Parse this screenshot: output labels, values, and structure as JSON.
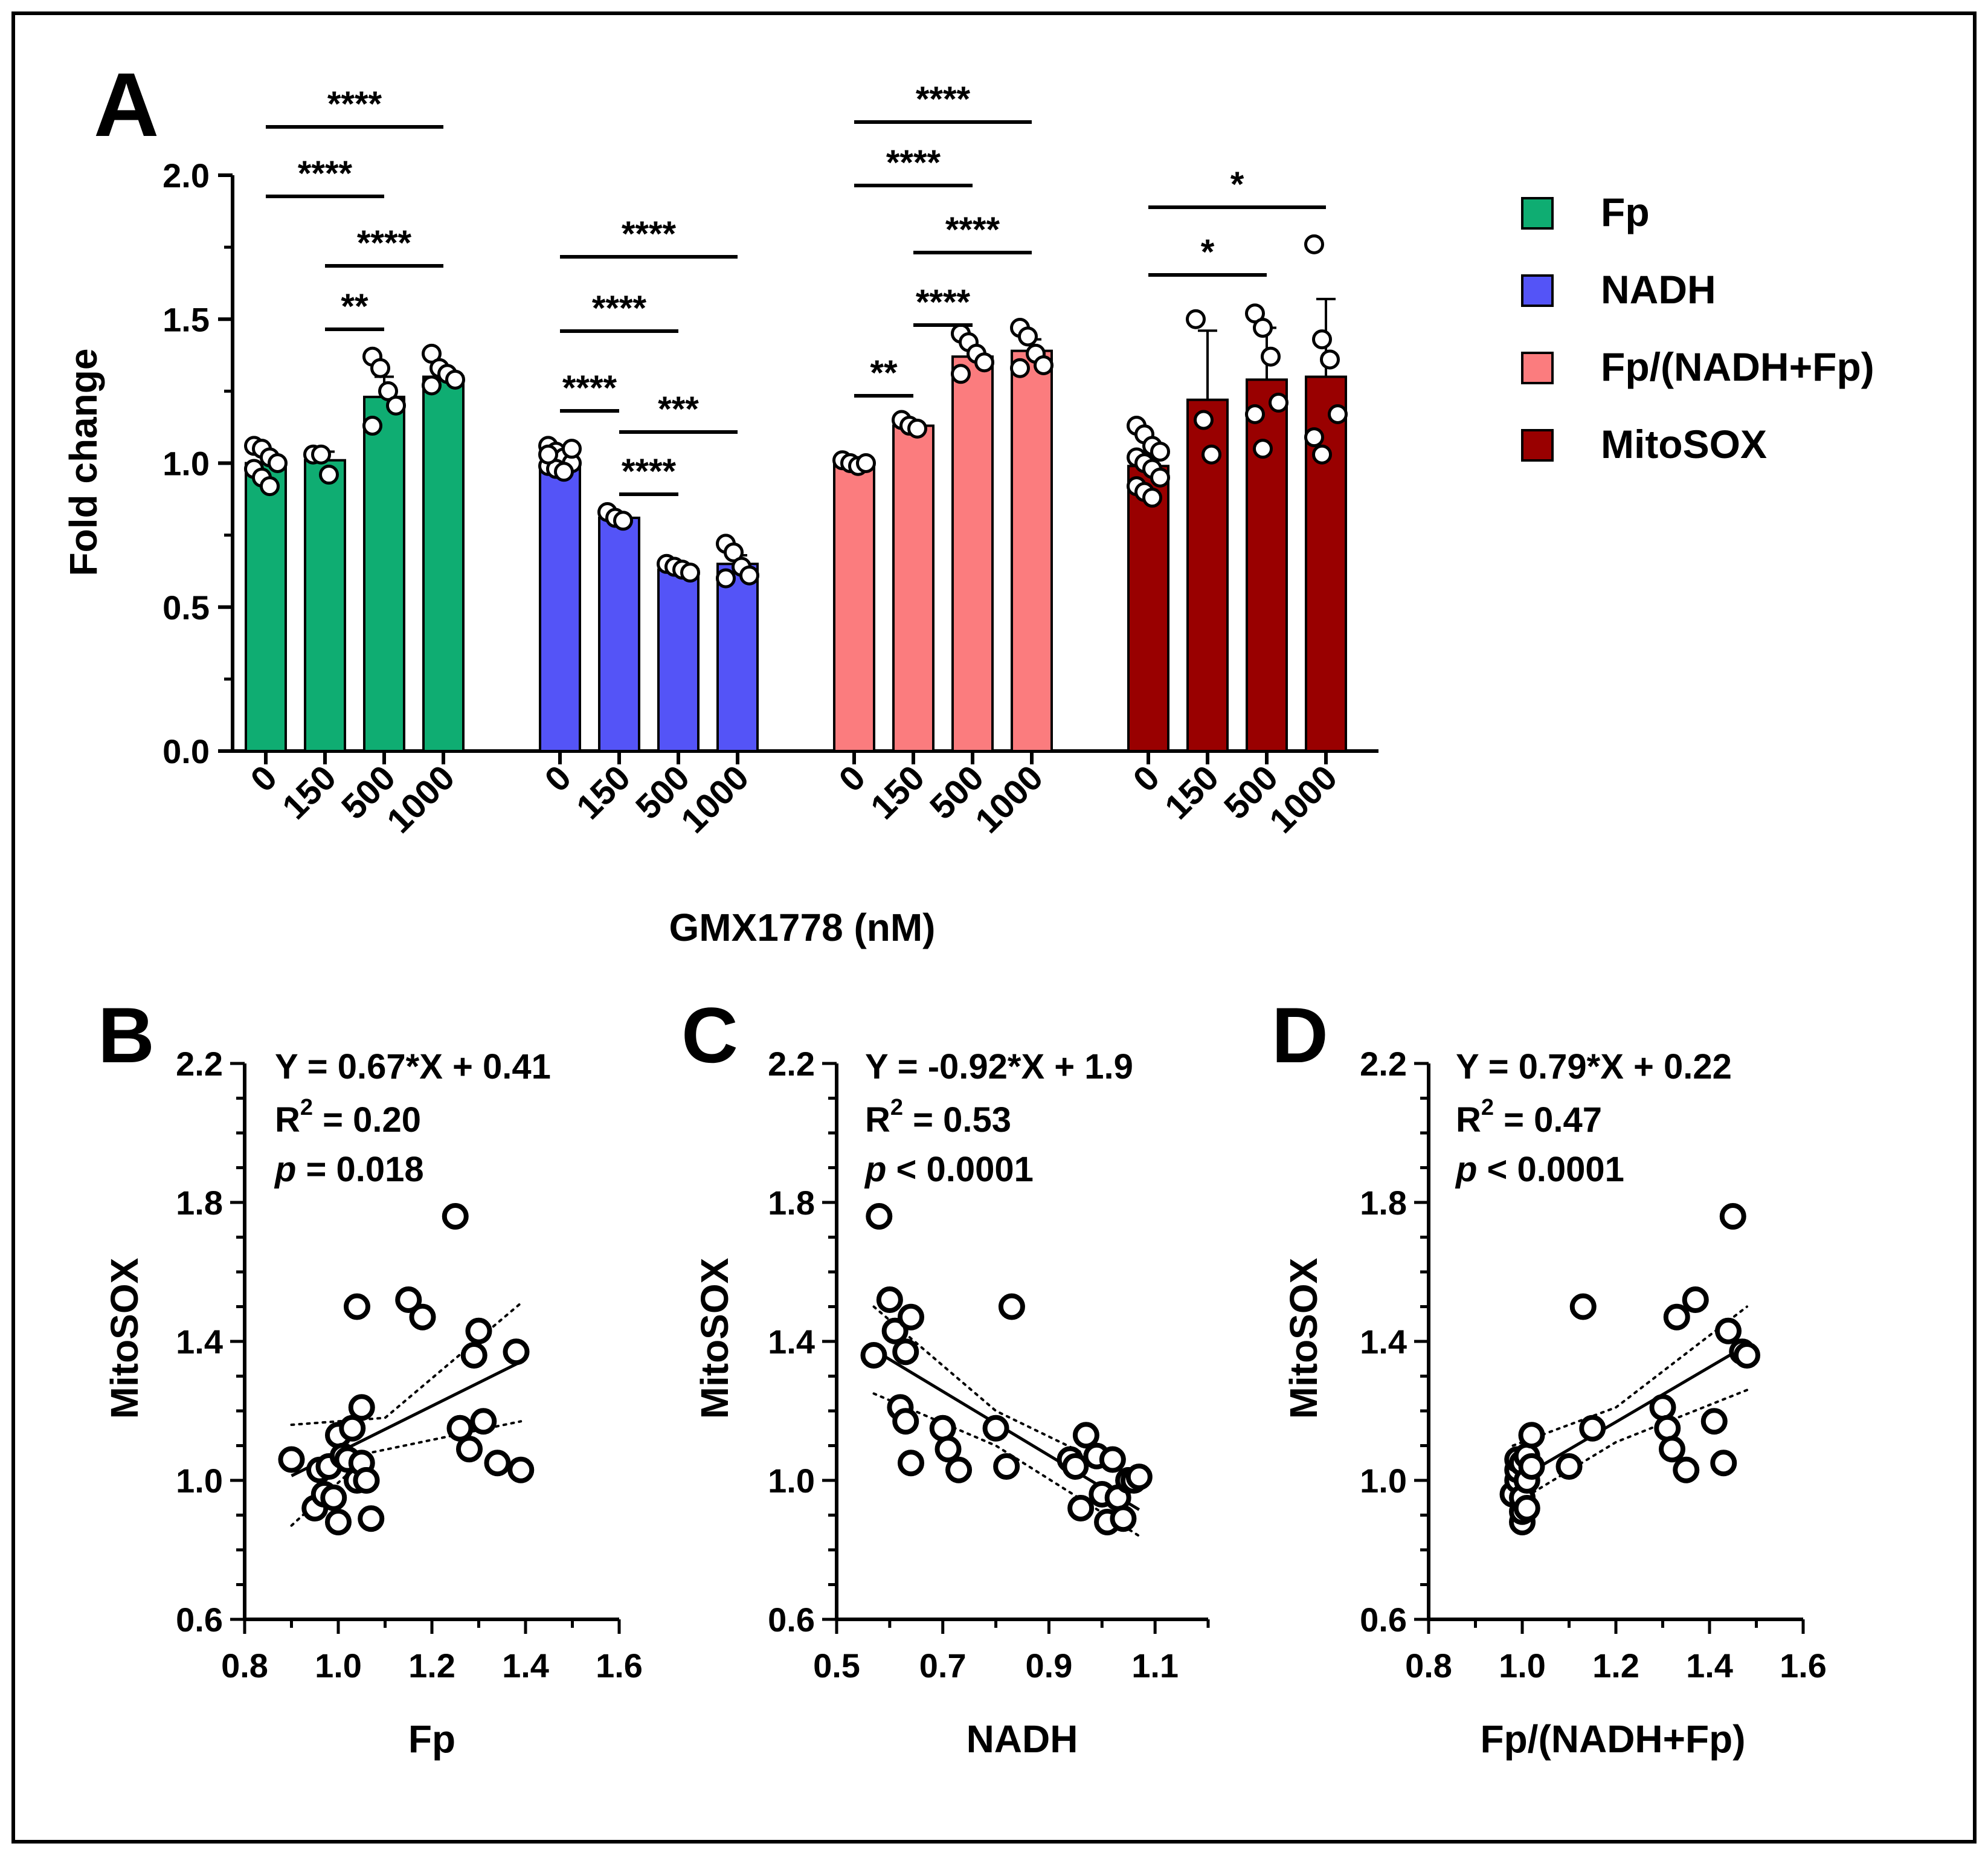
{
  "figure": {
    "panel_labels": [
      "A",
      "B",
      "C",
      "D"
    ]
  },
  "chart_data": [
    {
      "panel": "A",
      "type": "bar",
      "ylabel": "Fold change",
      "xlabel": "GMX1778 (nM)",
      "ylim": [
        0,
        2.0
      ],
      "yticks": [
        "0.0",
        "0.5",
        "1.0",
        "1.5",
        "2.0"
      ],
      "categories": [
        "0",
        "150",
        "500",
        "1000"
      ],
      "legend_position": "right",
      "series": [
        {
          "name": "Fp",
          "color": "#0fad72",
          "values": [
            1.0,
            1.01,
            1.23,
            1.3
          ],
          "errors": [
            0.03,
            0.03,
            0.07,
            0.03
          ],
          "points": [
            [
              1.06,
              1.05,
              1.02,
              1.0,
              0.98,
              0.95,
              0.92
            ],
            [
              1.03,
              1.03,
              0.96
            ],
            [
              1.37,
              1.33,
              1.25,
              1.2,
              1.13
            ],
            [
              1.38,
              1.33,
              1.31,
              1.29,
              1.27
            ]
          ],
          "comparisons": [
            {
              "from": 0,
              "to": 3,
              "label": "****"
            },
            {
              "from": 0,
              "to": 2,
              "label": "****"
            },
            {
              "from": 1,
              "to": 3,
              "label": "****"
            },
            {
              "from": 1,
              "to": 2,
              "label": "**"
            }
          ]
        },
        {
          "name": "NADH",
          "color": "#5454f7",
          "values": [
            1.0,
            0.81,
            0.63,
            0.65
          ],
          "errors": [
            0.02,
            0.01,
            0.01,
            0.03
          ],
          "points": [
            [
              1.06,
              1.04,
              1.02,
              1.0,
              0.99,
              0.98,
              0.97,
              1.05,
              1.03
            ],
            [
              0.83,
              0.81,
              0.8
            ],
            [
              0.65,
              0.64,
              0.63,
              0.62
            ],
            [
              0.72,
              0.69,
              0.64,
              0.61,
              0.6
            ]
          ],
          "comparisons": [
            {
              "from": 0,
              "to": 3,
              "label": "****"
            },
            {
              "from": 0,
              "to": 2,
              "label": "****"
            },
            {
              "from": 0,
              "to": 1,
              "label": "****"
            },
            {
              "from": 1,
              "to": 3,
              "label": "***"
            },
            {
              "from": 1,
              "to": 2,
              "label": "****"
            }
          ]
        },
        {
          "name": "Fp/(NADH+Fp)",
          "color": "#fb7c7e",
          "values": [
            1.0,
            1.13,
            1.37,
            1.39
          ],
          "errors": [
            0.01,
            0.01,
            0.03,
            0.04
          ],
          "points": [
            [
              1.01,
              1.0,
              0.99,
              1.0
            ],
            [
              1.15,
              1.13,
              1.12
            ],
            [
              1.45,
              1.42,
              1.38,
              1.35,
              1.31
            ],
            [
              1.47,
              1.44,
              1.38,
              1.34,
              1.33
            ]
          ],
          "comparisons": [
            {
              "from": 0,
              "to": 3,
              "label": "****"
            },
            {
              "from": 0,
              "to": 2,
              "label": "****"
            },
            {
              "from": 1,
              "to": 3,
              "label": "****"
            },
            {
              "from": 1,
              "to": 2,
              "label": "****"
            },
            {
              "from": 0,
              "to": 1,
              "label": "**"
            }
          ]
        },
        {
          "name": "MitoSOX",
          "color": "#990000",
          "values": [
            0.99,
            1.22,
            1.29,
            1.3
          ],
          "errors": [
            0.03,
            0.24,
            0.18,
            0.27
          ],
          "points": [
            [
              1.13,
              1.1,
              1.06,
              1.04,
              1.02,
              1.0,
              0.98,
              0.95,
              0.92,
              0.9,
              0.88
            ],
            [
              1.5,
              1.15,
              1.03
            ],
            [
              1.52,
              1.47,
              1.37,
              1.21,
              1.17,
              1.05
            ],
            [
              1.76,
              1.43,
              1.36,
              1.17,
              1.09,
              1.03
            ]
          ],
          "comparisons": [
            {
              "from": 0,
              "to": 3,
              "label": "*"
            },
            {
              "from": 0,
              "to": 2,
              "label": "*"
            }
          ]
        }
      ]
    },
    {
      "panel": "B",
      "type": "scatter",
      "xlabel": "Fp",
      "ylabel": "MitoSOX",
      "xlim": [
        0.8,
        1.6
      ],
      "ylim": [
        0.6,
        2.2
      ],
      "xticks": [
        "0.8",
        "1.0",
        "1.2",
        "1.4",
        "1.6"
      ],
      "yticks": [
        "0.6",
        "1.0",
        "1.4",
        "1.8",
        "2.2"
      ],
      "equation": "Y = 0.67*X + 0.41",
      "r2_label": "R",
      "r2_value": " = 0.20",
      "p_label": "p",
      "p_value": " = 0.018",
      "fit": {
        "slope": 0.67,
        "intercept": 0.41,
        "x_range": [
          0.9,
          1.39
        ],
        "ci_low": [
          [
            0.9,
            0.87
          ],
          [
            1.07,
            1.08
          ],
          [
            1.39,
            1.17
          ]
        ],
        "ci_high": [
          [
            0.9,
            1.16
          ],
          [
            1.1,
            1.18
          ],
          [
            1.39,
            1.51
          ]
        ]
      },
      "x": [
        0.9,
        0.95,
        0.96,
        0.97,
        0.98,
        0.99,
        1.0,
        1.0,
        1.01,
        1.02,
        1.03,
        1.04,
        1.04,
        1.05,
        1.05,
        1.06,
        1.06,
        1.07,
        1.15,
        1.18,
        1.25,
        1.26,
        1.28,
        1.29,
        1.3,
        1.31,
        1.34,
        1.38,
        1.39
      ],
      "y": [
        1.06,
        0.92,
        1.03,
        0.96,
        1.04,
        0.95,
        0.88,
        1.13,
        1.07,
        1.06,
        1.15,
        1.0,
        1.5,
        1.21,
        1.05,
        1.0,
        1.0,
        0.89,
        1.52,
        1.47,
        1.76,
        1.15,
        1.09,
        1.36,
        1.43,
        1.17,
        1.05,
        1.37,
        1.03
      ]
    },
    {
      "panel": "C",
      "type": "scatter",
      "xlabel": "NADH",
      "ylabel": "MitoSOX",
      "xlim": [
        0.5,
        1.2
      ],
      "ylim": [
        0.6,
        2.2
      ],
      "xticks": [
        "0.5",
        "0.7",
        "0.9",
        "1.1"
      ],
      "yticks": [
        "0.6",
        "1.0",
        "1.4",
        "1.8",
        "2.2"
      ],
      "equation": "Y = -0.92*X + 1.9",
      "r2_label": "R",
      "r2_value": " = 0.53",
      "p_label": "p",
      "p_value": " < 0.0001",
      "fit": {
        "slope": -0.92,
        "intercept": 1.9,
        "x_range": [
          0.57,
          1.07
        ],
        "ci_low": [
          [
            0.57,
            1.25
          ],
          [
            0.8,
            1.1
          ],
          [
            1.07,
            0.84
          ]
        ],
        "ci_high": [
          [
            0.57,
            1.5
          ],
          [
            0.8,
            1.2
          ],
          [
            1.07,
            1.0
          ]
        ]
      },
      "x": [
        0.57,
        0.58,
        0.6,
        0.61,
        0.62,
        0.63,
        0.63,
        0.64,
        0.64,
        0.7,
        0.71,
        0.73,
        0.8,
        0.82,
        0.83,
        0.94,
        0.95,
        0.96,
        0.97,
        0.99,
        1.0,
        1.01,
        1.02,
        1.03,
        1.04,
        1.05,
        1.05,
        1.06,
        1.07
      ],
      "y": [
        1.36,
        1.76,
        1.52,
        1.43,
        1.21,
        1.17,
        1.37,
        1.47,
        1.05,
        1.15,
        1.09,
        1.03,
        1.15,
        1.04,
        1.5,
        1.06,
        1.04,
        0.92,
        1.13,
        1.07,
        0.96,
        0.88,
        1.06,
        0.95,
        0.89,
        1.0,
        1.0,
        1.0,
        1.01
      ]
    },
    {
      "panel": "D",
      "type": "scatter",
      "xlabel": "Fp/(NADH+Fp)",
      "ylabel": "MitoSOX",
      "xlim": [
        0.8,
        1.6
      ],
      "ylim": [
        0.6,
        2.2
      ],
      "xticks": [
        "0.8",
        "1.0",
        "1.2",
        "1.4",
        "1.6"
      ],
      "yticks": [
        "0.6",
        "1.0",
        "1.4",
        "1.8",
        "2.2"
      ],
      "equation": "Y = 0.79*X + 0.22",
      "r2_label": "R",
      "r2_value": " = 0.47",
      "p_label": "p",
      "p_value": " < 0.0001",
      "fit": {
        "slope": 0.79,
        "intercept": 0.22,
        "x_range": [
          0.98,
          1.48
        ],
        "ci_low": [
          [
            0.98,
            0.93
          ],
          [
            1.2,
            1.11
          ],
          [
            1.48,
            1.26
          ]
        ],
        "ci_high": [
          [
            0.98,
            1.1
          ],
          [
            1.2,
            1.21
          ],
          [
            1.48,
            1.5
          ]
        ]
      },
      "x": [
        0.98,
        0.99,
        0.99,
        0.99,
        1.0,
        1.0,
        1.0,
        1.0,
        1.01,
        1.01,
        1.01,
        1.02,
        1.02,
        1.1,
        1.13,
        1.15,
        1.3,
        1.31,
        1.32,
        1.33,
        1.35,
        1.37,
        1.41,
        1.43,
        1.44,
        1.45,
        1.47,
        1.48
      ],
      "y": [
        0.96,
        1.0,
        1.03,
        1.06,
        0.88,
        0.91,
        0.95,
        1.05,
        0.92,
        1.0,
        1.07,
        1.13,
        1.04,
        1.04,
        1.5,
        1.15,
        1.21,
        1.15,
        1.09,
        1.47,
        1.03,
        1.52,
        1.17,
        1.05,
        1.43,
        1.76,
        1.37,
        1.36
      ]
    }
  ]
}
